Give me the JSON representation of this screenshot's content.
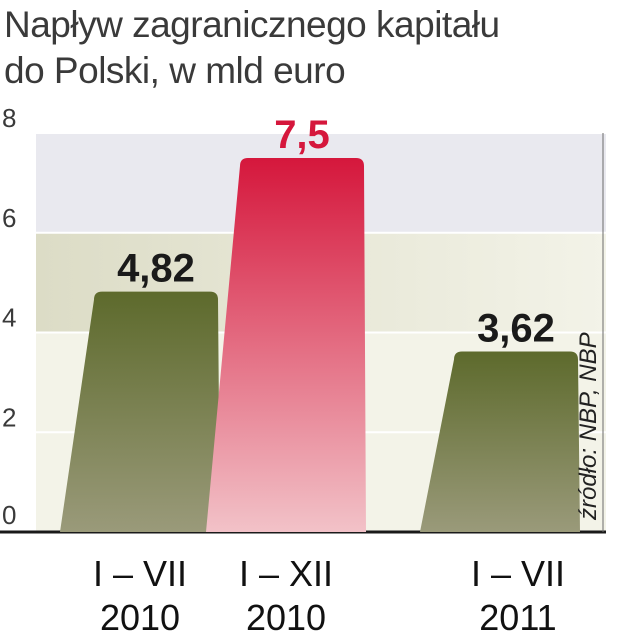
{
  "title_line1": "Napływ zagranicznego kapitału",
  "title_line2": "do Polski, w mld euro",
  "source": "źródło: NBP, NBP",
  "colors": {
    "olive_top": "#5d6a2c",
    "olive_bottom": "#9a9a7a",
    "red_top": "#d5173c",
    "red_bottom": "#f2c2c8",
    "band_light": "#f3f3e8",
    "band_mid": "#dcdcc6",
    "highlight_value": "#d5173c"
  },
  "chart_data": {
    "type": "bar",
    "title": "Napływ zagranicznego kapitału do Polski, w mld euro",
    "categories": [
      {
        "line1": "I – VII",
        "line2": "2010"
      },
      {
        "line1": "I – XII",
        "line2": "2010"
      },
      {
        "line1": "I – VII",
        "line2": "2011"
      }
    ],
    "values": [
      4.82,
      7.5,
      3.62
    ],
    "value_labels": [
      "4,82",
      "7,5",
      "3,62"
    ],
    "bar_colors": [
      "olive",
      "red",
      "olive"
    ],
    "ylim": [
      0,
      8
    ],
    "yticks": [
      "0",
      "2",
      "4",
      "6",
      "8"
    ],
    "grid": true
  }
}
